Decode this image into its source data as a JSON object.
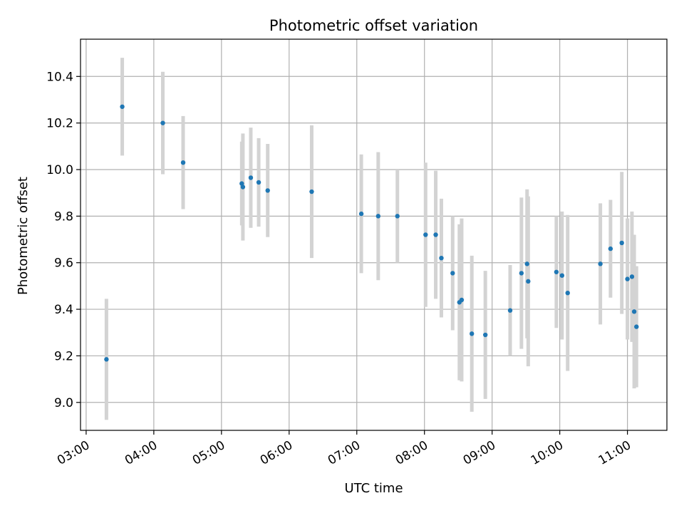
{
  "chart_data": {
    "type": "scatter",
    "title": "Photometric offset variation",
    "xlabel": "UTC time",
    "ylabel": "Photometric offset",
    "x_unit": "time",
    "xlim": [
      "02:55",
      "11:35"
    ],
    "ylim": [
      8.88,
      10.56
    ],
    "grid": true,
    "x_ticks": [
      "03:00",
      "04:00",
      "05:00",
      "06:00",
      "07:00",
      "08:00",
      "09:00",
      "10:00",
      "11:00"
    ],
    "y_ticks": [
      9.0,
      9.2,
      9.4,
      9.6,
      9.8,
      10.0,
      10.2,
      10.4
    ],
    "colors": {
      "point": "#1f77b4",
      "errorbar": "#d3d3d3",
      "grid": "#b0b0b0"
    },
    "series": [
      {
        "points": [
          {
            "x": "03:18",
            "y": 9.185,
            "err": 0.26
          },
          {
            "x": "03:32",
            "y": 10.27,
            "err": 0.21
          },
          {
            "x": "04:08",
            "y": 10.2,
            "err": 0.22
          },
          {
            "x": "04:26",
            "y": 10.03,
            "err": 0.2
          },
          {
            "x": "05:18",
            "y": 9.94,
            "err": 0.18
          },
          {
            "x": "05:19",
            "y": 9.925,
            "err": 0.23
          },
          {
            "x": "05:26",
            "y": 9.965,
            "err": 0.215
          },
          {
            "x": "05:33",
            "y": 9.945,
            "err": 0.19
          },
          {
            "x": "05:41",
            "y": 9.91,
            "err": 0.2
          },
          {
            "x": "06:20",
            "y": 9.905,
            "err": 0.285
          },
          {
            "x": "07:04",
            "y": 9.81,
            "err": 0.255
          },
          {
            "x": "07:19",
            "y": 9.8,
            "err": 0.275
          },
          {
            "x": "07:36",
            "y": 9.8,
            "err": 0.2
          },
          {
            "x": "08:01",
            "y": 9.72,
            "err": 0.31
          },
          {
            "x": "08:10",
            "y": 9.72,
            "err": 0.275
          },
          {
            "x": "08:15",
            "y": 9.62,
            "err": 0.255
          },
          {
            "x": "08:25",
            "y": 9.555,
            "err": 0.245
          },
          {
            "x": "08:31",
            "y": 9.43,
            "err": 0.335
          },
          {
            "x": "08:33",
            "y": 9.44,
            "err": 0.35
          },
          {
            "x": "08:42",
            "y": 9.295,
            "err": 0.335
          },
          {
            "x": "08:54",
            "y": 9.29,
            "err": 0.275
          },
          {
            "x": "09:16",
            "y": 9.395,
            "err": 0.195
          },
          {
            "x": "09:26",
            "y": 9.555,
            "err": 0.325
          },
          {
            "x": "09:31",
            "y": 9.595,
            "err": 0.32
          },
          {
            "x": "09:32",
            "y": 9.52,
            "err": 0.365
          },
          {
            "x": "09:57",
            "y": 9.56,
            "err": 0.24
          },
          {
            "x": "10:02",
            "y": 9.545,
            "err": 0.275
          },
          {
            "x": "10:07",
            "y": 9.47,
            "err": 0.335
          },
          {
            "x": "10:36",
            "y": 9.595,
            "err": 0.26
          },
          {
            "x": "10:45",
            "y": 9.66,
            "err": 0.21
          },
          {
            "x": "10:55",
            "y": 9.685,
            "err": 0.305
          },
          {
            "x": "11:00",
            "y": 9.53,
            "err": 0.26
          },
          {
            "x": "11:04",
            "y": 9.54,
            "err": 0.28
          },
          {
            "x": "11:06",
            "y": 9.39,
            "err": 0.33
          },
          {
            "x": "11:08",
            "y": 9.325,
            "err": 0.26
          }
        ]
      }
    ]
  }
}
